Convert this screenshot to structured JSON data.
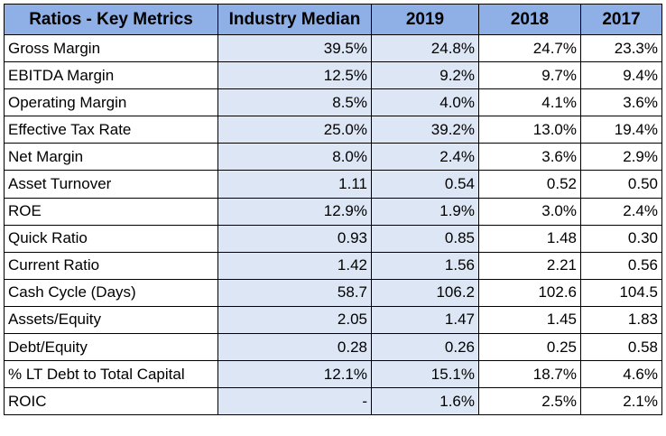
{
  "table": {
    "headers": [
      "Ratios - Key Metrics",
      "Industry Median",
      "2019",
      "2018",
      "2017"
    ],
    "rows": [
      {
        "metric": "Gross Margin",
        "median": "39.5%",
        "y2019": "24.8%",
        "y2018": "24.7%",
        "y2017": "23.3%"
      },
      {
        "metric": "EBITDA Margin",
        "median": "12.5%",
        "y2019": "9.2%",
        "y2018": "9.7%",
        "y2017": "9.4%"
      },
      {
        "metric": "Operating Margin",
        "median": "8.5%",
        "y2019": "4.0%",
        "y2018": "4.1%",
        "y2017": "3.6%"
      },
      {
        "metric": "Effective Tax Rate",
        "median": "25.0%",
        "y2019": "39.2%",
        "y2018": "13.0%",
        "y2017": "19.4%"
      },
      {
        "metric": "Net Margin",
        "median": "8.0%",
        "y2019": "2.4%",
        "y2018": "3.6%",
        "y2017": "2.9%"
      },
      {
        "metric": "Asset Turnover",
        "median": "1.11",
        "y2019": "0.54",
        "y2018": "0.52",
        "y2017": "0.50"
      },
      {
        "metric": "ROE",
        "median": "12.9%",
        "y2019": "1.9%",
        "y2018": "3.0%",
        "y2017": "2.4%"
      },
      {
        "metric": "Quick Ratio",
        "median": "0.93",
        "y2019": "0.85",
        "y2018": "1.48",
        "y2017": "0.30"
      },
      {
        "metric": "Current Ratio",
        "median": "1.42",
        "y2019": "1.56",
        "y2018": "2.21",
        "y2017": "0.56"
      },
      {
        "metric": "Cash Cycle (Days)",
        "median": "58.7",
        "y2019": "106.2",
        "y2018": "102.6",
        "y2017": "104.5"
      },
      {
        "metric": "Assets/Equity",
        "median": "2.05",
        "y2019": "1.47",
        "y2018": "1.45",
        "y2017": "1.83"
      },
      {
        "metric": "Debt/Equity",
        "median": "0.28",
        "y2019": "0.26",
        "y2018": "0.25",
        "y2017": "0.58"
      },
      {
        "metric": "% LT Debt to Total Capital",
        "median": "12.1%",
        "y2019": "15.1%",
        "y2018": "18.7%",
        "y2017": "4.6%"
      },
      {
        "metric": "ROIC",
        "median": "-",
        "y2019": "1.6%",
        "y2018": "2.5%",
        "y2017": "2.1%"
      }
    ]
  },
  "colors": {
    "header_bg": "#8fb0e6",
    "shaded_cell_bg": "#dce6f4",
    "border": "#000000"
  }
}
